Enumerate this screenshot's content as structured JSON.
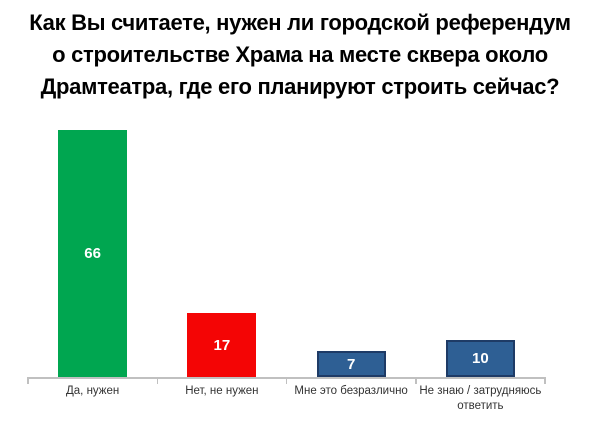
{
  "chart_data": {
    "type": "bar",
    "title": "Как Вы считаете, нужен ли городской референдум о строительстве Храма на месте сквера около Драмтеатра, где его планируют строить сейчас?",
    "title_lines": [
      "Как Вы считаете, нужен ли городской референдум",
      "о строительстве Храма на месте сквера около",
      "Драмтеатра, где его планируют строить сейчас?"
    ],
    "categories": [
      "Да, нужен",
      "Нет, не нужен",
      "Мне это безразлично",
      "Не знаю / затрудняюсь ответить"
    ],
    "values": [
      66,
      17,
      7,
      10
    ],
    "xlabel": "",
    "ylabel": "",
    "ylim": [
      0,
      70
    ],
    "grid": false,
    "legend": "none",
    "value_labels_shown": true,
    "colors": {
      "bar_fills": [
        "#00A650",
        "#F40505",
        "#2E5F94",
        "#2E5F94"
      ],
      "bar_borders": [
        "none",
        "none",
        "#1E3B66",
        "#1E3B66"
      ],
      "value_label": "#FFFFFF",
      "axis_line": "#C0C0C0",
      "category_label": "#333333",
      "title": "#000000"
    }
  }
}
